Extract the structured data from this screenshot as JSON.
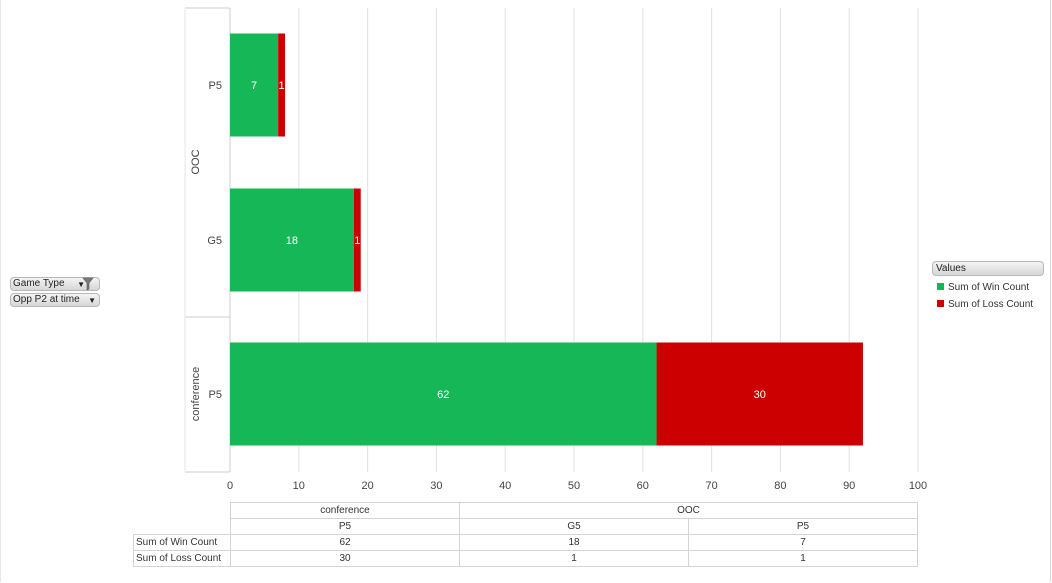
{
  "filters": {
    "game_type": "Game Type",
    "opp_p2": "Opp P2 at time"
  },
  "legend": {
    "title": "Values",
    "items": [
      {
        "label": "Sum of Win Count",
        "color": "#15b756"
      },
      {
        "label": "Sum of Loss Count",
        "color": "#cc0000"
      }
    ]
  },
  "chart_data": {
    "type": "bar",
    "orientation": "horizontal",
    "stacked": true,
    "groups": [
      {
        "label": "OOC",
        "categories": [
          "P5",
          "G5"
        ]
      },
      {
        "label": "conference",
        "categories": [
          "P5"
        ]
      }
    ],
    "categories": [
      "OOC | P5",
      "OOC | G5",
      "conference | P5"
    ],
    "series": [
      {
        "name": "Sum of Win Count",
        "values": [
          7,
          18,
          62
        ],
        "color": "#15b756"
      },
      {
        "name": "Sum of Loss Count",
        "values": [
          1,
          1,
          30
        ],
        "color": "#cc0000"
      }
    ],
    "xlim": [
      0,
      100
    ],
    "xticks": [
      0,
      10,
      20,
      30,
      40,
      50,
      60,
      70,
      80,
      90,
      100
    ],
    "grid": true,
    "legend_position": "right"
  },
  "data_table": {
    "header_groups": [
      "conference",
      "OOC"
    ],
    "header_categories": [
      "P5",
      "G5",
      "P5"
    ],
    "rows": [
      {
        "label": "Sum of Win Count",
        "values": [
          "62",
          "18",
          "7"
        ]
      },
      {
        "label": "Sum of Loss Count",
        "values": [
          "30",
          "1",
          "1"
        ]
      }
    ]
  }
}
